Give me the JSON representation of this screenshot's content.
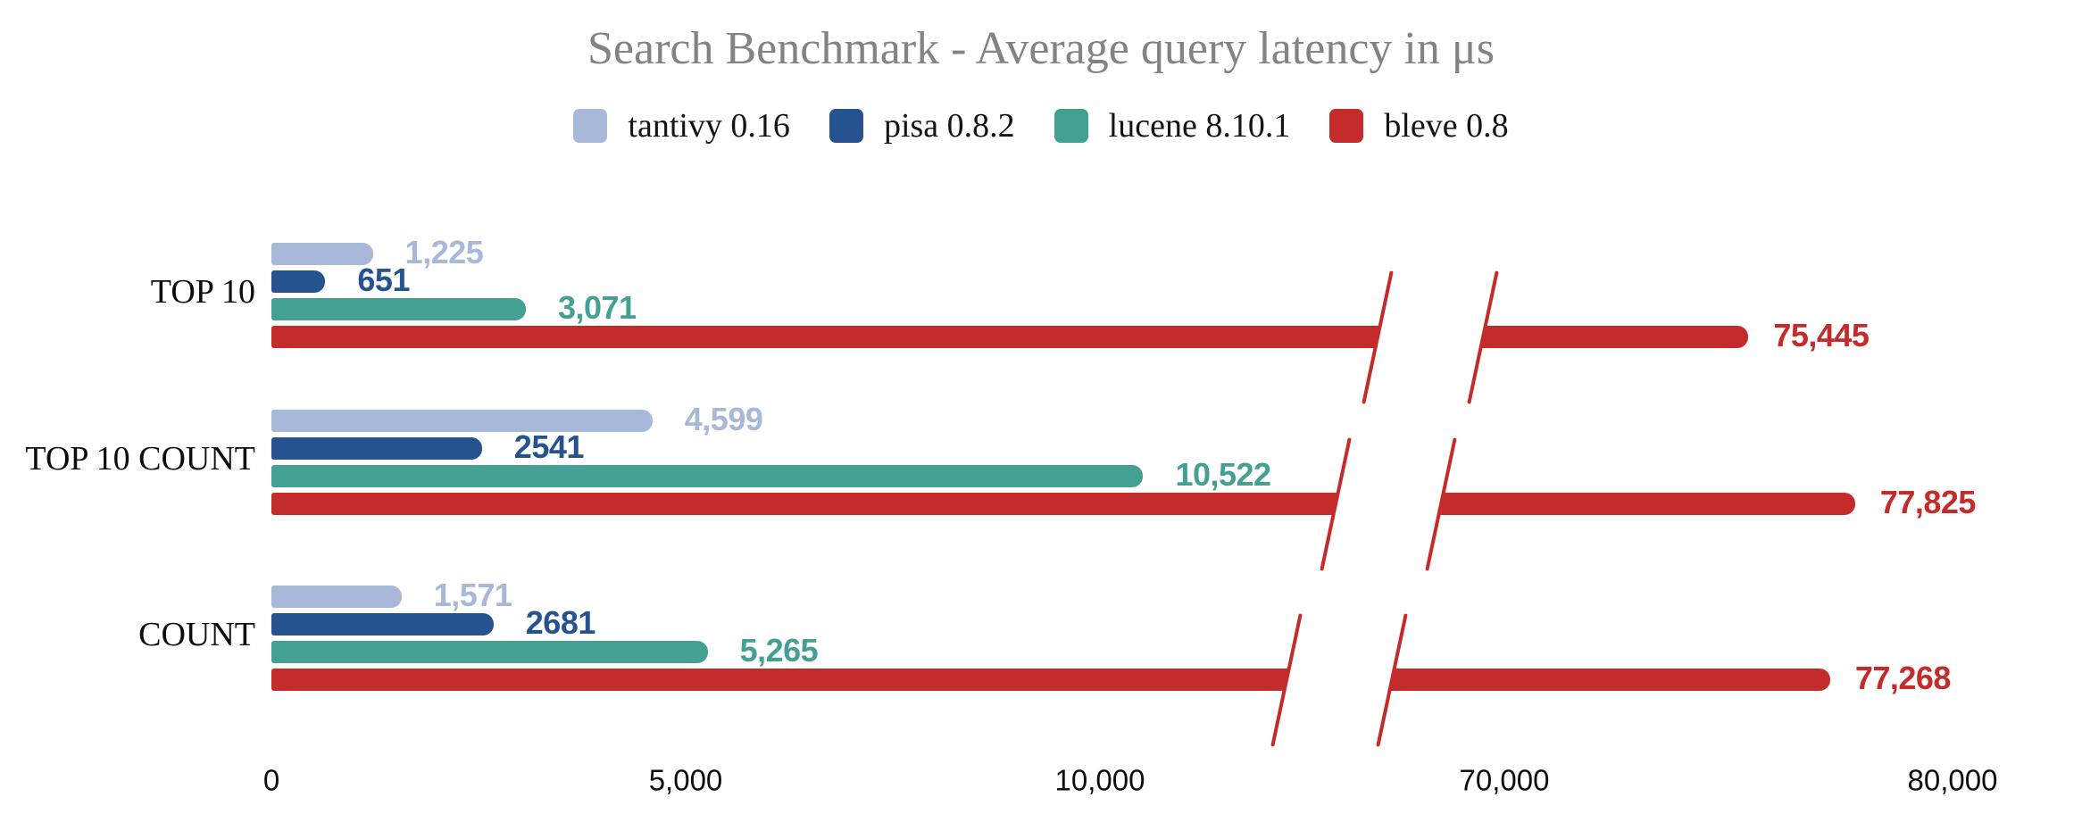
{
  "chart_data": {
    "type": "bar",
    "orientation": "horizontal",
    "title": "Search Benchmark - Average query latency in μs",
    "legend_position": "top",
    "grid": false,
    "categories": [
      "TOP 10",
      "TOP 10 COUNT",
      "COUNT"
    ],
    "series": [
      {
        "name": "tantivy 0.16",
        "color": "#a7b8d8",
        "values": [
          1225,
          4599,
          1571
        ],
        "labels": [
          "1,225",
          "4,599",
          "1,571"
        ],
        "axis_break": false
      },
      {
        "name": "pisa 0.8.2",
        "color": "#26538f",
        "values": [
          651,
          2541,
          2681
        ],
        "labels": [
          "651",
          "2541",
          "2681"
        ],
        "axis_break": false
      },
      {
        "name": "lucene 8.10.1",
        "color": "#44a093",
        "values": [
          3071,
          10522,
          5265
        ],
        "labels": [
          "3,071",
          "10,522",
          "5,265"
        ],
        "axis_break": false
      },
      {
        "name": "bleve 0.8",
        "color": "#c42b2b",
        "values": [
          75445,
          77825,
          77268
        ],
        "labels": [
          "75,445",
          "77,825",
          "77,268"
        ],
        "axis_break": true
      }
    ],
    "x_axis": {
      "ticks": [
        {
          "value": 0,
          "label": "0"
        },
        {
          "value": 5000,
          "label": "5,000"
        },
        {
          "value": 10000,
          "label": "10,000"
        },
        {
          "value": 70000,
          "label": "70,000"
        },
        {
          "value": 80000,
          "label": "80,000"
        }
      ],
      "break_between": [
        12000,
        67000
      ]
    },
    "xlim_left_segment": [
      0,
      13000
    ],
    "xlim_right_segment": [
      65000,
      81500
    ]
  },
  "colors": {
    "background": "#ffffff",
    "title_text": "#838383",
    "axis_text": "#0d0d0d",
    "break_mark": "#c42b2b"
  }
}
